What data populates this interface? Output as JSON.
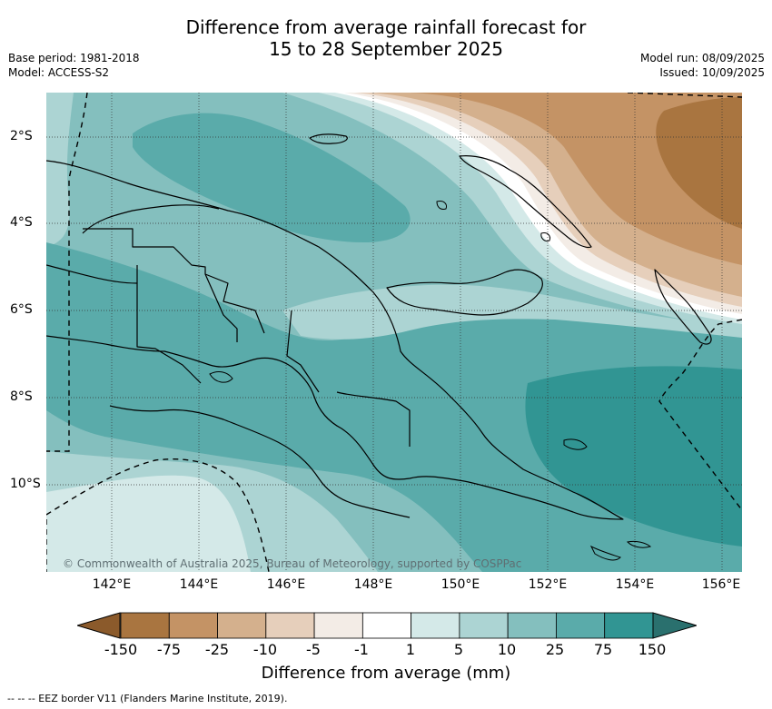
{
  "header": {
    "title_line1": "Difference from average rainfall forecast for",
    "title_line2": "15 to 28 September 2025",
    "base_period": "Base period: 1981-2018",
    "model": "Model: ACCESS-S2",
    "model_run": "Model run: 08/09/2025",
    "issued": "Issued: 10/09/2025"
  },
  "map": {
    "copyright": "© Commonwealth of Australia 2025, Bureau of Meteorology, supported by COSPPac",
    "lon_labels": [
      "142°E",
      "144°E",
      "146°E",
      "148°E",
      "150°E",
      "152°E",
      "154°E",
      "156°E"
    ],
    "lat_labels": [
      "2°S",
      "4°S",
      "6°S",
      "8°S",
      "10°S"
    ],
    "colors": {
      "dry_extreme": "#8b5a2b",
      "dry_150": "#a97540",
      "dry_75": "#c49365",
      "dry_25": "#d4b08d",
      "dry_10": "#e6cfbb",
      "dry_5": "#f3ece6",
      "neutral": "#ffffff",
      "wet_1": "#d4e9e8",
      "wet_5": "#acd4d3",
      "wet_10": "#84bfbe",
      "wet_25": "#5aabaa",
      "wet_75": "#319593",
      "wet_extreme": "#2a706e"
    }
  },
  "colorbar": {
    "tick_labels": [
      "-150",
      "-75",
      "-25",
      "-10",
      "-5",
      "-1",
      "1",
      "5",
      "10",
      "25",
      "75",
      "150"
    ],
    "colors": [
      "#a97540",
      "#c49365",
      "#d4b08d",
      "#e6cfbb",
      "#f3ece6",
      "#ffffff",
      "#d4e9e8",
      "#acd4d3",
      "#84bfbe",
      "#5aabaa",
      "#319593"
    ],
    "under_color": "#8b5a2b",
    "over_color": "#2a706e",
    "title": "Difference from average (mm)"
  },
  "footer": {
    "legend": "--  --  -- EEZ border V11 (Flanders Marine Institute, 2019)."
  }
}
